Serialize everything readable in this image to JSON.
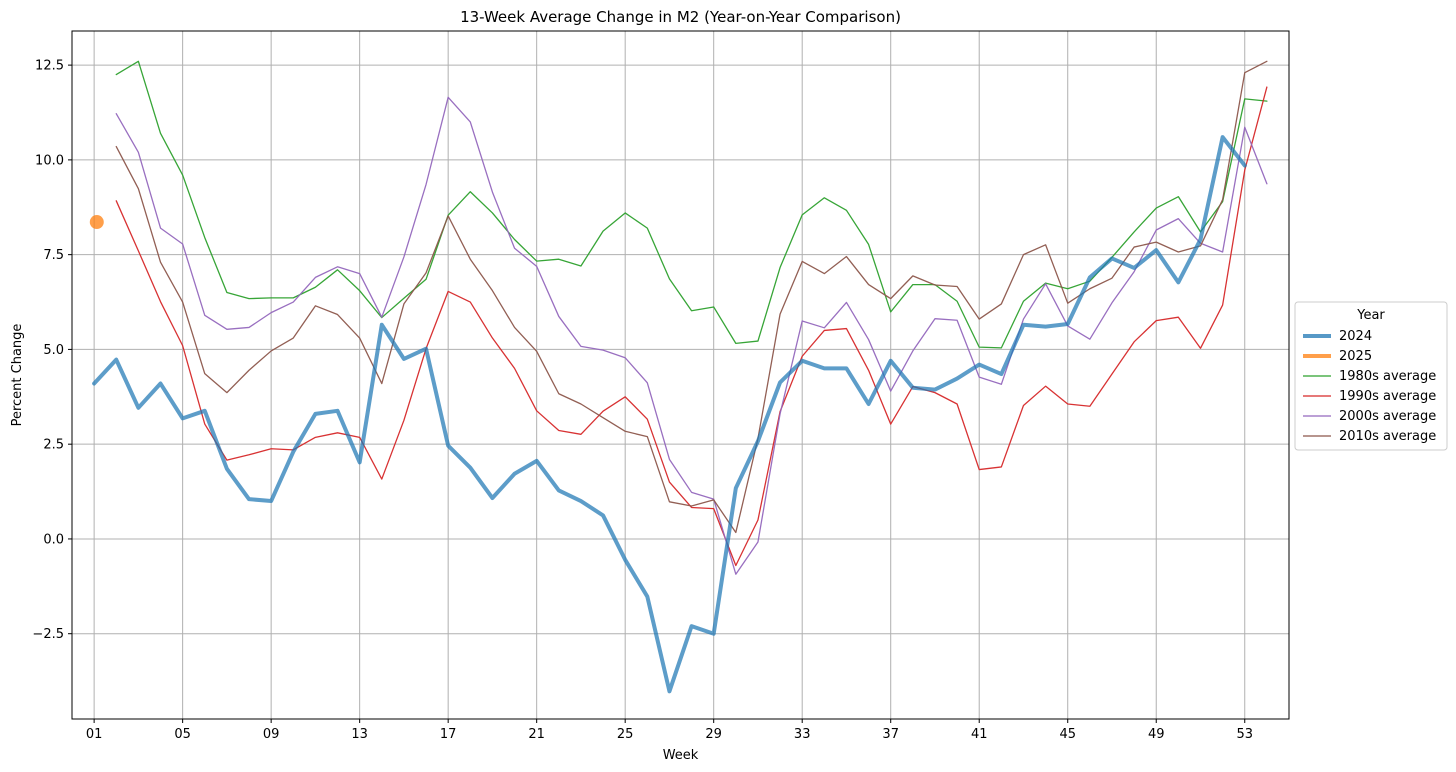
{
  "chart_data": {
    "type": "line",
    "title": "13-Week Average Change in M2 (Year-on-Year Comparison)",
    "xlabel": "Week",
    "ylabel": "Percent Change",
    "xlim": [
      0,
      55
    ],
    "ylim": [
      -4.75,
      13.4
    ],
    "x_ticks": [
      1,
      5,
      9,
      13,
      17,
      21,
      25,
      29,
      33,
      37,
      41,
      45,
      49,
      53
    ],
    "x_tick_labels": [
      "01",
      "05",
      "09",
      "13",
      "17",
      "21",
      "25",
      "29",
      "33",
      "37",
      "41",
      "45",
      "49",
      "53"
    ],
    "y_ticks": [
      -2.5,
      0.0,
      2.5,
      5.0,
      7.5,
      10.0,
      12.5
    ],
    "y_tick_labels": [
      "−2.5",
      "0.0",
      "2.5",
      "5.0",
      "7.5",
      "10.0",
      "12.5"
    ],
    "grid": true,
    "legend": {
      "title": "Year",
      "placement": "outside-right"
    },
    "series": [
      {
        "name": "2024",
        "color": "#1f77b4",
        "style": "thick",
        "x": [
          1,
          2,
          3,
          4,
          5,
          6,
          7,
          8,
          9,
          10,
          11,
          12,
          13,
          14,
          15,
          16,
          17,
          18,
          19,
          20,
          21,
          22,
          23,
          24,
          25,
          26,
          27,
          28,
          29,
          30,
          31,
          32,
          33,
          34,
          35,
          36,
          37,
          38,
          39,
          40,
          41,
          42,
          43,
          44,
          45,
          46,
          47,
          48,
          49,
          50,
          51,
          52,
          53
        ],
        "values": [
          4.1,
          4.73,
          3.46,
          4.1,
          3.18,
          3.38,
          1.85,
          1.05,
          1.0,
          2.3,
          3.3,
          3.38,
          2.02,
          5.65,
          4.75,
          5.02,
          2.46,
          1.88,
          1.08,
          1.72,
          2.06,
          1.28,
          1.0,
          0.62,
          -0.55,
          -1.52,
          -4.02,
          -2.3,
          -2.5,
          1.34,
          2.58,
          4.13,
          4.7,
          4.5,
          4.5,
          3.56,
          4.7,
          3.99,
          3.94,
          4.23,
          4.6,
          4.35,
          5.65,
          5.6,
          5.67,
          6.9,
          7.4,
          7.15,
          7.62,
          6.77,
          7.9,
          10.6,
          9.85
        ]
      },
      {
        "name": "2025",
        "color": "#ff7f0e",
        "style": "thick",
        "x": [
          1.12
        ],
        "values": [
          8.36
        ]
      },
      {
        "name": "1980s average",
        "color": "#2ca02c",
        "style": "thin",
        "x": [
          2,
          3,
          4,
          5,
          6,
          7,
          8,
          9,
          10,
          11,
          12,
          13,
          14,
          15,
          16,
          17,
          18,
          19,
          20,
          21,
          22,
          23,
          24,
          25,
          26,
          27,
          28,
          29,
          30,
          31,
          32,
          33,
          34,
          35,
          36,
          37,
          38,
          39,
          40,
          41,
          42,
          43,
          44,
          45,
          46,
          47,
          48,
          49,
          50,
          51,
          52,
          53,
          54
        ],
        "values": [
          12.25,
          12.6,
          10.7,
          9.6,
          7.95,
          6.5,
          6.34,
          6.36,
          6.36,
          6.64,
          7.1,
          6.55,
          5.84,
          6.35,
          6.85,
          8.54,
          9.16,
          8.6,
          7.9,
          7.33,
          7.38,
          7.2,
          8.12,
          8.6,
          8.2,
          6.86,
          6.02,
          6.12,
          5.16,
          5.22,
          7.16,
          8.55,
          9.0,
          8.67,
          7.77,
          5.99,
          6.71,
          6.71,
          6.27,
          5.06,
          5.04,
          6.27,
          6.75,
          6.6,
          6.8,
          7.43,
          8.1,
          8.73,
          9.03,
          8.1,
          8.9,
          11.61,
          11.55
        ]
      },
      {
        "name": "1990s average",
        "color": "#d62728",
        "style": "thin",
        "x": [
          2,
          3,
          4,
          5,
          6,
          7,
          8,
          9,
          10,
          11,
          12,
          13,
          14,
          15,
          16,
          17,
          18,
          19,
          20,
          21,
          22,
          23,
          24,
          25,
          26,
          27,
          28,
          29,
          30,
          31,
          32,
          33,
          34,
          35,
          36,
          37,
          38,
          39,
          40,
          41,
          42,
          43,
          44,
          45,
          46,
          47,
          48,
          49,
          50,
          51,
          52,
          53,
          54
        ],
        "values": [
          8.92,
          7.6,
          6.26,
          5.1,
          3.03,
          2.08,
          2.22,
          2.38,
          2.35,
          2.68,
          2.8,
          2.68,
          1.58,
          3.13,
          5.02,
          6.53,
          6.25,
          5.3,
          4.5,
          3.38,
          2.86,
          2.76,
          3.37,
          3.75,
          3.16,
          1.5,
          0.83,
          0.8,
          -0.7,
          0.5,
          3.36,
          4.82,
          5.5,
          5.55,
          4.45,
          3.03,
          4.02,
          3.86,
          3.56,
          1.83,
          1.9,
          3.52,
          4.03,
          3.56,
          3.5,
          4.35,
          5.2,
          5.76,
          5.85,
          5.03,
          6.17,
          9.73,
          11.92
        ]
      },
      {
        "name": "2000s average",
        "color": "#9467bd",
        "style": "thin",
        "x": [
          2,
          3,
          4,
          5,
          6,
          7,
          8,
          9,
          10,
          11,
          12,
          13,
          14,
          15,
          16,
          17,
          18,
          19,
          20,
          21,
          22,
          23,
          24,
          25,
          26,
          27,
          28,
          29,
          30,
          31,
          32,
          33,
          34,
          35,
          36,
          37,
          38,
          39,
          40,
          41,
          42,
          43,
          44,
          45,
          46,
          47,
          48,
          49,
          50,
          51,
          52,
          53,
          54
        ],
        "values": [
          11.22,
          10.2,
          8.2,
          7.78,
          5.9,
          5.53,
          5.58,
          5.97,
          6.25,
          6.9,
          7.18,
          7.0,
          5.85,
          7.44,
          9.35,
          11.65,
          11.0,
          9.15,
          7.67,
          7.19,
          5.87,
          5.08,
          4.98,
          4.78,
          4.12,
          2.1,
          1.23,
          1.05,
          -0.93,
          -0.08,
          3.3,
          5.75,
          5.57,
          6.24,
          5.26,
          3.9,
          4.96,
          5.81,
          5.77,
          4.27,
          4.08,
          5.8,
          6.73,
          5.62,
          5.27,
          6.23,
          7.05,
          8.15,
          8.45,
          7.8,
          7.57,
          10.86,
          9.37
        ]
      },
      {
        "name": "2010s average",
        "color": "#8c564b",
        "style": "thin",
        "x": [
          2,
          3,
          4,
          5,
          6,
          7,
          8,
          9,
          10,
          11,
          12,
          13,
          14,
          15,
          16,
          17,
          18,
          19,
          20,
          21,
          22,
          23,
          24,
          25,
          26,
          27,
          28,
          29,
          30,
          31,
          32,
          33,
          34,
          35,
          36,
          37,
          38,
          39,
          40,
          41,
          42,
          43,
          44,
          45,
          46,
          47,
          48,
          49,
          50,
          51,
          52,
          53,
          54
        ],
        "values": [
          10.35,
          9.24,
          7.3,
          6.25,
          4.36,
          3.86,
          4.45,
          4.96,
          5.3,
          6.15,
          5.92,
          5.3,
          4.1,
          6.2,
          7.02,
          8.52,
          7.38,
          6.55,
          5.58,
          4.95,
          3.83,
          3.56,
          3.2,
          2.84,
          2.7,
          0.98,
          0.87,
          1.03,
          0.17,
          2.65,
          5.93,
          7.32,
          7.0,
          7.45,
          6.71,
          6.34,
          6.94,
          6.7,
          6.66,
          5.8,
          6.2,
          7.5,
          7.76,
          6.22,
          6.6,
          6.88,
          7.7,
          7.83,
          7.57,
          7.73,
          8.95,
          12.3,
          12.6
        ]
      }
    ]
  }
}
